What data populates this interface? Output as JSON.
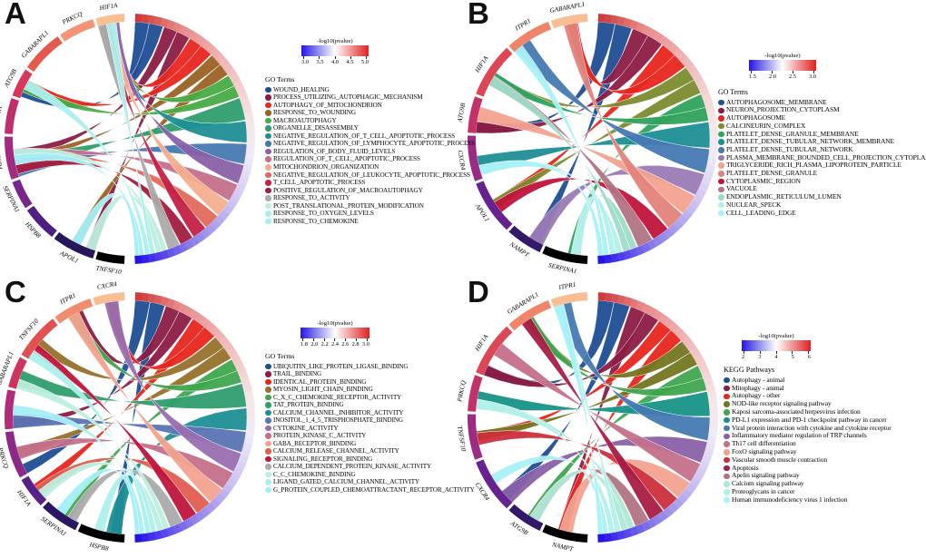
{
  "figure": {
    "panel_labels": [
      "A",
      "B",
      "C",
      "D"
    ],
    "colors": {
      "colorbar_low": "#2415E6",
      "colorbar_mid": "#FFFFFF",
      "colorbar_high": "#E02020",
      "background": "#FFFFFF"
    }
  },
  "chart_data": [
    {
      "panel": "A",
      "type": "chord",
      "legend_title": "GO Terms",
      "colorbar": {
        "title": "-log10(pvalue)",
        "ticks": [
          "3.0",
          "3.5",
          "4.0",
          "4.5",
          "5.0"
        ]
      },
      "genes": [
        "HIF1A",
        "PRKCQ",
        "GABARAPL1",
        "ATG9B",
        "ITPR1",
        "CXCR4",
        "SERPINA1",
        "HSPB8",
        "APOL1",
        "TNFSF10"
      ],
      "terms": [
        {
          "name": "WOUND_HEALING",
          "color": "#1F4E95"
        },
        {
          "name": "PROCESS_UTILIZING_AUTOPHAGIC_MECHANISM",
          "color": "#8C1C45"
        },
        {
          "name": "AUTOPHAGY_OF_MITOCHONDRION",
          "color": "#E8261E"
        },
        {
          "name": "RESPONSE_TO_WOUNDING",
          "color": "#9B6223"
        },
        {
          "name": "MACROAUTOPHAGY",
          "color": "#49AB44"
        },
        {
          "name": "ORGANELLE_DISASSEMBLY",
          "color": "#2E9E6E"
        },
        {
          "name": "NEGATIVE_REGULATION_OF_T_CELL_APOPTOTIC_PROCESS",
          "color": "#1E8F96"
        },
        {
          "name": "NEGATIVE_REGULATION_OF_LYMPHOCYTE_APOPTOTIC_PROCESS",
          "color": "#4679B2"
        },
        {
          "name": "REGULATION_OF_BODY_FLUID_LEVELS",
          "color": "#8961A8"
        },
        {
          "name": "REGULATION_OF_T_CELL_APOPTOTIC_PROCESS",
          "color": "#C4708A"
        },
        {
          "name": "MITOCHONDRION_ORGANIZATION",
          "color": "#F4AE8E"
        },
        {
          "name": "NEGATIVE_REGULATION_OF_LEUKOCYTE_APOPTOTIC_PROCESS",
          "color": "#E26A5B"
        },
        {
          "name": "T_CELL_APOPTOTIC_PROCESS",
          "color": "#C42145"
        },
        {
          "name": "POSITIVE_REGULATION_OF_MACROAUTOPHAGY",
          "color": "#A31C3F"
        },
        {
          "name": "RESPONSE_TO_ACTIVITY",
          "color": "#ABABAB"
        },
        {
          "name": "POST_TRANSLATIONAL_PROTEIN_MODIFICATION",
          "color": "#BCEEDE"
        },
        {
          "name": "RESPONSE_TO_OXYGEN_LEVELS",
          "color": "#ACF0EC"
        },
        {
          "name": "RESPONSE_TO_CHEMOKINE",
          "color": "#A3EFF8"
        }
      ]
    },
    {
      "panel": "B",
      "type": "chord",
      "legend_title": "GO Terms",
      "colorbar": {
        "title": "-log10(pvalue)",
        "ticks": [
          "1.5",
          "2.0",
          "2.5",
          "3.0"
        ]
      },
      "genes": [
        "GABARAPL1",
        "ITPR1",
        "HIF1A",
        "ATG9B",
        "CXCR4",
        "APOL1",
        "NAMPT",
        "SERPINA1"
      ],
      "terms": [
        {
          "name": "AUTOPHAGOSOME_MEMBRANE",
          "color": "#1F4E95"
        },
        {
          "name": "NEURON_PROJECTION_CYTOPLASM",
          "color": "#8C1C45"
        },
        {
          "name": "AUTOPHAGOSOME",
          "color": "#E8261E"
        },
        {
          "name": "CALCINEURIN_COMPLEX",
          "color": "#7C8B2D"
        },
        {
          "name": "PLATELET_DENSE_GRANULE_MEMBRANE",
          "color": "#2FA35C"
        },
        {
          "name": "PLATELET_DENSE_TUBULAR_NETWORK_MEMBRANE",
          "color": "#1E8F96"
        },
        {
          "name": "PLATELET_DENSE_TUBULAR_NETWORK",
          "color": "#4679B2"
        },
        {
          "name": "PLASMA_MEMBRANE_BOUNDED_CELL_PROJECTION_CYTOPLASM",
          "color": "#9A7BB5"
        },
        {
          "name": "TRIGLYCERIDE_RICH_PLASMA_LIPOPROTEIN_PARTICLE",
          "color": "#F2A28E"
        },
        {
          "name": "PLATELET_DENSE_GRANULE",
          "color": "#E2837B"
        },
        {
          "name": "CYTOPLASMIC_REGION",
          "color": "#C0143C"
        },
        {
          "name": "VACUOLE",
          "color": "#B27483"
        },
        {
          "name": "ENDOPLASMIC_RETICULUM_LUMEN",
          "color": "#9EDBC8"
        },
        {
          "name": "NUCLEAR_SPECK",
          "color": "#B2F0EA"
        },
        {
          "name": "CELL_LEADING_EDGE",
          "color": "#A8F2F8"
        }
      ]
    },
    {
      "panel": "C",
      "type": "chord",
      "legend_title": "GO Terms",
      "colorbar": {
        "title": "-log10(pvalue)",
        "ticks": [
          "1.8",
          "2.0",
          "2.2",
          "2.4",
          "2.6",
          "2.8",
          "3.0"
        ]
      },
      "genes": [
        "CXCR4",
        "ITPR1",
        "TNFSF10",
        "GABARAPL1",
        "NAMPT",
        "PRKCQ",
        "HIF1A",
        "SERPINA1",
        "HSPB8"
      ],
      "terms": [
        {
          "name": "UBIQUITIN_LIKE_PROTEIN_LIGASE_BINDING",
          "color": "#1F4E95"
        },
        {
          "name": "TRAIL_BINDING",
          "color": "#8C1C45"
        },
        {
          "name": "IDENTICAL_PROTEIN_BINDING",
          "color": "#E8261E"
        },
        {
          "name": "MYOSIN_LIGHT_CHAIN_BINDING",
          "color": "#96712B"
        },
        {
          "name": "C_X_C_CHEMOKINE_RECEPTOR_ACTIVITY",
          "color": "#3FA54F"
        },
        {
          "name": "TAT_PROTEIN_BINDING",
          "color": "#2E9E6E"
        },
        {
          "name": "CALCIUM_CHANNEL_INHIBITOR_ACTIVITY",
          "color": "#1E8F96"
        },
        {
          "name": "INOSITOL_1_4_5_TRISPHOSPHATE_BINDING",
          "color": "#5A74B4"
        },
        {
          "name": "CYTOKINE_ACTIVITY",
          "color": "#9A6FB0"
        },
        {
          "name": "PROTEIN_KINASE_C_ACTIVITY",
          "color": "#C4708A"
        },
        {
          "name": "GABA_RECEPTOR_BINDING",
          "color": "#F2A28E"
        },
        {
          "name": "CALCIUM_RELEASE_CHANNEL_ACTIVITY",
          "color": "#E25D50"
        },
        {
          "name": "SIGNALING_RECEPTOR_BINDING",
          "color": "#C0143C"
        },
        {
          "name": "CALCIUM_DEPENDENT_PROTEIN_KINASE_ACTIVITY",
          "color": "#ABABAB"
        },
        {
          "name": "C_C_CHEMOKINE_BINDING",
          "color": "#BCEEDE"
        },
        {
          "name": "LIGAND_GATED_CALCIUM_CHANNEL_ACTIVITY",
          "color": "#ACF0EC"
        },
        {
          "name": "G_PROTEIN_COUPLED_CHEMOATTRACTANT_RECEPTOR_ACTIVITY",
          "color": "#A3EFF8"
        }
      ]
    },
    {
      "panel": "D",
      "type": "chord",
      "legend_title": "KEGG Pathways",
      "colorbar": {
        "title": "-log10(pvalue)",
        "ticks": [
          "2",
          "3",
          "4",
          "5",
          "6"
        ]
      },
      "genes": [
        "ITPR1",
        "GABARAPL1",
        "HIF1A",
        "PRKCQ",
        "TNFSF10",
        "CXCR4",
        "ATG9B",
        "NAMPT"
      ],
      "terms": [
        {
          "name": "Autophagy - animal",
          "color": "#1F4E95"
        },
        {
          "name": "Mitophagy - animal",
          "color": "#8C1C45"
        },
        {
          "name": "Autophagy - other",
          "color": "#E8261E"
        },
        {
          "name": "NOD-like receptor signaling pathway",
          "color": "#73761F"
        },
        {
          "name": "Kaposi sarcoma-associated herpesvirus infection",
          "color": "#3FA54F"
        },
        {
          "name": "PD-L1 expression and PD-1 checkpoint pathway in cancer",
          "color": "#179287"
        },
        {
          "name": "Viral protein interaction with cytokine and cytokine receptor",
          "color": "#4679B2"
        },
        {
          "name": "Inflammatory mediator regulation of TRP channels",
          "color": "#8961A8"
        },
        {
          "name": "Th17 cell differentiation",
          "color": "#C4708A"
        },
        {
          "name": "FoxO signaling pathway",
          "color": "#F2A28E"
        },
        {
          "name": "Vascular smooth muscle contraction",
          "color": "#CC2F3C"
        },
        {
          "name": "Apoptosis",
          "color": "#A81C44"
        },
        {
          "name": "Apelin signaling pathway",
          "color": "#B27483"
        },
        {
          "name": "Calcium signaling pathway",
          "color": "#AFE8D6"
        },
        {
          "name": "Proteoglycans in cancer",
          "color": "#B2F0EA"
        },
        {
          "name": "Human immunodeficiency virus 1 infection",
          "color": "#A8F2F8"
        }
      ]
    }
  ]
}
